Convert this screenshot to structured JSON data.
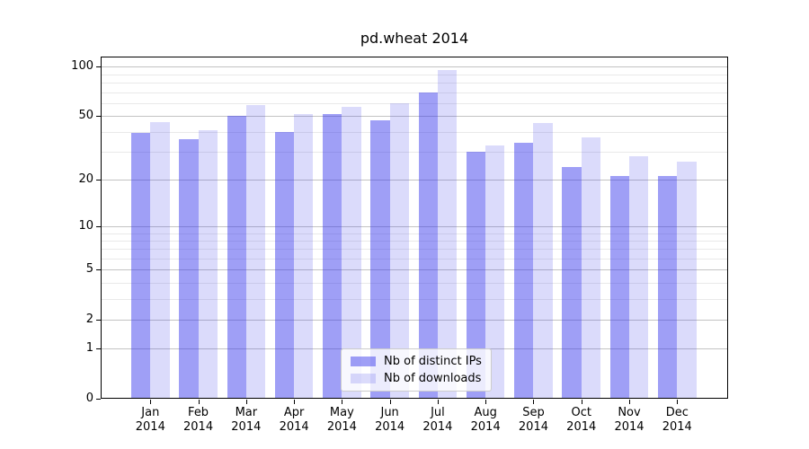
{
  "chart_data": {
    "type": "bar",
    "title": "pd.wheat 2014",
    "year": "2014",
    "months": [
      "Jan",
      "Feb",
      "Mar",
      "Apr",
      "May",
      "Jun",
      "Jul",
      "Aug",
      "Sep",
      "Oct",
      "Nov",
      "Dec"
    ],
    "categories": [
      "Jan 2014",
      "Feb 2014",
      "Mar 2014",
      "Apr 2014",
      "May 2014",
      "Jun 2014",
      "Jul 2014",
      "Aug 2014",
      "Sep 2014",
      "Oct 2014",
      "Nov 2014",
      "Dec 2014"
    ],
    "series": [
      {
        "name": "Nb of distinct IPs",
        "color": "rgba(50,50,235,0.47)",
        "solid_hex": "#9f9ff4",
        "values": [
          39,
          36,
          50,
          40,
          51,
          47,
          70,
          30,
          34,
          24,
          21,
          21
        ]
      },
      {
        "name": "Nb of downloads",
        "color": "rgba(50,50,235,0.175)",
        "solid_hex": "#dbdbfa",
        "values": [
          46,
          41,
          58,
          51,
          57,
          60,
          95,
          33,
          45,
          37,
          28,
          26
        ]
      }
    ],
    "yscale": "log1p",
    "ylim": [
      0,
      116
    ],
    "ytick_values": [
      0,
      1,
      2,
      5,
      10,
      20,
      50,
      100
    ],
    "ytick_labels": [
      "0",
      "1",
      "2",
      "5",
      "10",
      "20",
      "50",
      "100"
    ],
    "minor_grid_values": [
      3,
      4,
      6,
      7,
      8,
      9,
      30,
      40,
      60,
      70,
      80,
      90
    ],
    "grid": true,
    "legend_position": "lower center",
    "colors": {
      "grid_major": "#c3c3c3",
      "grid_minor": "#e9e9e9",
      "spine": "#000000",
      "text": "#000000",
      "background": "#ffffff"
    }
  }
}
